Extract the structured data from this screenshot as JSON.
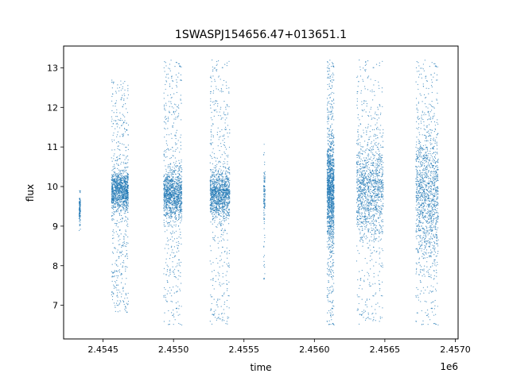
{
  "chart_data": {
    "type": "scatter",
    "title": "1SWASPJ154656.47+013651.1",
    "xlabel": "time",
    "ylabel": "flux",
    "x_offset_label": "1e6",
    "xlim": [
      2.45422,
      2.45702
    ],
    "ylim": [
      6.15,
      13.55
    ],
    "x_ticks": [
      2.4545,
      2.455,
      2.4555,
      2.456,
      2.4565,
      2.457
    ],
    "x_tick_labels": [
      "2.4545",
      "2.4550",
      "2.4555",
      "2.4560",
      "2.4565",
      "2.4570"
    ],
    "y_ticks": [
      7,
      8,
      9,
      10,
      11,
      12,
      13
    ],
    "y_tick_labels": [
      "7",
      "8",
      "9",
      "10",
      "11",
      "12",
      "13"
    ],
    "grid": false,
    "legend": "none",
    "marker_color": "#1f77b4",
    "observing_seasons": [
      {
        "x_start": 2.45433,
        "x_end": 2.45434,
        "y_center": 9.4,
        "y_spread_core": 0.15,
        "y_min": 8.8,
        "y_max": 9.9,
        "density": "sparse"
      },
      {
        "x_start": 2.45456,
        "x_end": 2.45468,
        "y_center": 9.9,
        "y_spread_core": 0.25,
        "y_min": 6.8,
        "y_max": 12.7,
        "density": "dense"
      },
      {
        "x_start": 2.45493,
        "x_end": 2.45506,
        "y_center": 9.8,
        "y_spread_core": 0.3,
        "y_min": 6.5,
        "y_max": 13.2,
        "density": "dense"
      },
      {
        "x_start": 2.45526,
        "x_end": 2.4554,
        "y_center": 9.8,
        "y_spread_core": 0.3,
        "y_min": 6.5,
        "y_max": 13.2,
        "density": "dense"
      },
      {
        "x_start": 2.45564,
        "x_end": 2.45565,
        "y_center": 9.8,
        "y_spread_core": 0.3,
        "y_min": 7.5,
        "y_max": 11.1,
        "density": "sparse"
      },
      {
        "x_start": 2.45609,
        "x_end": 2.45614,
        "y_center": 9.9,
        "y_spread_core": 0.6,
        "y_min": 6.5,
        "y_max": 13.2,
        "density": "dense"
      },
      {
        "x_start": 2.4563,
        "x_end": 2.45649,
        "y_center": 9.9,
        "y_spread_core": 0.6,
        "y_min": 6.5,
        "y_max": 13.2,
        "density": "dense"
      },
      {
        "x_start": 2.45672,
        "x_end": 2.45688,
        "y_center": 9.8,
        "y_spread_core": 0.8,
        "y_min": 6.5,
        "y_max": 13.2,
        "density": "dense"
      }
    ]
  }
}
